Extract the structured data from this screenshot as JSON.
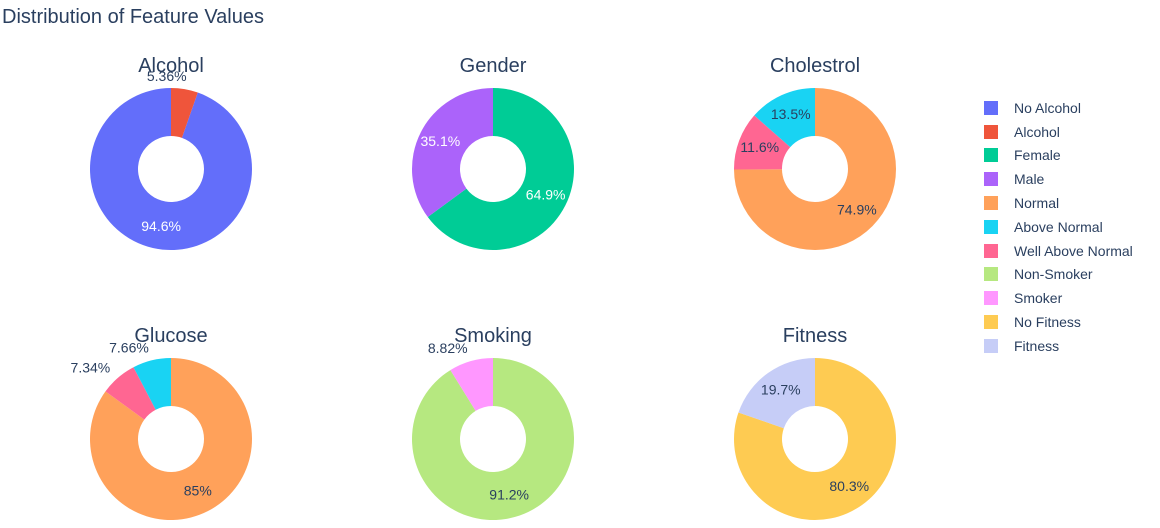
{
  "chart_data": {
    "type": "pie",
    "title": "Distribution of Feature Values",
    "donut": true,
    "legend_position": "right",
    "charts": [
      {
        "title": "Alcohol",
        "labels": [
          "No Alcohol",
          "Alcohol"
        ],
        "values": [
          94.6,
          5.36
        ],
        "text": [
          "94.6%",
          "5.36%"
        ],
        "colors": [
          "#636efa",
          "#EF553B"
        ]
      },
      {
        "title": "Gender",
        "labels": [
          "Female",
          "Male"
        ],
        "values": [
          64.9,
          35.1
        ],
        "text": [
          "64.9%",
          "35.1%"
        ],
        "colors": [
          "#00cc96",
          "#ab63fa"
        ]
      },
      {
        "title": "Cholestrol",
        "labels": [
          "Normal",
          "Well Above Normal",
          "Above Normal"
        ],
        "values": [
          74.9,
          11.6,
          13.5
        ],
        "text": [
          "74.9%",
          "11.6%",
          "13.5%"
        ],
        "colors": [
          "#FFA15A",
          "#FF6692",
          "#19d3f3"
        ]
      },
      {
        "title": "Glucose",
        "labels": [
          "Normal",
          "Well Above Normal",
          "Above Normal"
        ],
        "values": [
          85,
          7.34,
          7.66
        ],
        "text": [
          "85%",
          "7.34%",
          "7.66%"
        ],
        "colors": [
          "#FFA15A",
          "#FF6692",
          "#19d3f3"
        ]
      },
      {
        "title": "Smoking",
        "labels": [
          "Non-Smoker",
          "Smoker"
        ],
        "values": [
          91.2,
          8.82
        ],
        "text": [
          "91.2%",
          "8.82%"
        ],
        "colors": [
          "#B6E880",
          "#FF97FF"
        ]
      },
      {
        "title": "Fitness",
        "labels": [
          "No Fitness",
          "Fitness"
        ],
        "values": [
          80.3,
          19.7
        ],
        "text": [
          "80.3%",
          "19.7%"
        ],
        "colors": [
          "#FECB52",
          "#c6cdf7"
        ]
      }
    ],
    "legend": [
      {
        "label": "No Alcohol",
        "color": "#636efa"
      },
      {
        "label": "Alcohol",
        "color": "#EF553B"
      },
      {
        "label": "Female",
        "color": "#00cc96"
      },
      {
        "label": "Male",
        "color": "#ab63fa"
      },
      {
        "label": "Normal",
        "color": "#FFA15A"
      },
      {
        "label": "Above Normal",
        "color": "#19d3f3"
      },
      {
        "label": "Well Above Normal",
        "color": "#FF6692"
      },
      {
        "label": "Non-Smoker",
        "color": "#B6E880"
      },
      {
        "label": "Smoker",
        "color": "#FF97FF"
      },
      {
        "label": "No Fitness",
        "color": "#FECB52"
      },
      {
        "label": "Fitness",
        "color": "#c6cdf7"
      }
    ]
  }
}
